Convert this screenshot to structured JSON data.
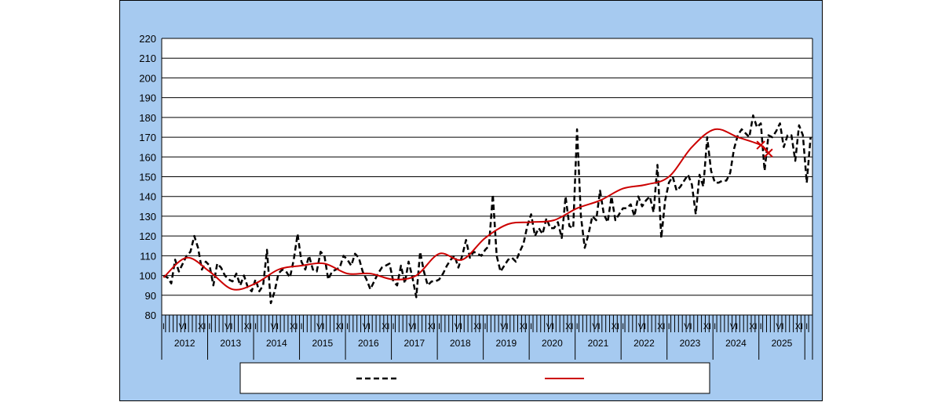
{
  "chart_data": {
    "type": "line",
    "title": "",
    "xlabel": "",
    "ylabel": "",
    "ylim": [
      80,
      220
    ],
    "y_ticks": [
      80,
      90,
      100,
      110,
      120,
      130,
      140,
      150,
      160,
      170,
      180,
      190,
      200,
      210,
      220
    ],
    "grid": true,
    "start": "2012-01",
    "month_tick_labels": [
      "I",
      "VI",
      "XI"
    ],
    "years": [
      "2012",
      "2013",
      "2014",
      "2015",
      "2016",
      "2017",
      "2018",
      "2019",
      "2020",
      "2021",
      "2022",
      "2023",
      "2024",
      "2025"
    ],
    "legend_position": "bottom",
    "series": [
      {
        "name": "",
        "style": "dashed",
        "color": "#000000",
        "values": [
          100,
          99,
          96,
          108,
          102,
          106,
          110,
          112,
          120,
          114,
          103,
          107,
          105,
          95,
          106,
          104,
          100,
          98,
          97,
          101,
          95,
          100,
          94,
          92,
          98,
          92,
          95,
          113,
          86,
          92,
          101,
          103,
          102,
          99,
          108,
          121,
          107,
          103,
          110,
          103,
          102,
          112,
          110,
          98,
          102,
          103,
          104,
          110,
          108,
          105,
          111,
          109,
          102,
          98,
          93,
          97,
          101,
          104,
          105,
          106,
          97,
          95,
          105,
          96,
          107,
          99,
          89,
          112,
          102,
          95,
          97,
          97,
          98,
          101,
          105,
          108,
          110,
          104,
          110,
          118,
          109,
          112,
          111,
          110,
          113,
          115,
          141,
          110,
          102,
          105,
          108,
          109,
          107,
          112,
          116,
          125,
          131,
          120,
          124,
          121,
          129,
          124,
          124,
          127,
          119,
          140,
          125,
          124,
          174,
          130,
          114,
          121,
          130,
          128,
          143,
          131,
          127,
          140,
          128,
          131,
          134,
          134,
          136,
          130,
          140,
          135,
          138,
          140,
          132,
          156,
          119,
          138,
          147,
          150,
          143,
          145,
          148,
          151,
          146,
          131,
          151,
          145,
          170,
          153,
          147,
          147,
          148,
          148,
          152,
          164,
          171,
          174,
          172,
          170,
          181,
          175,
          177,
          153,
          171,
          170,
          173,
          177,
          165,
          171,
          171,
          158,
          176,
          171,
          147,
          170
        ],
        "x_start": "2012-01"
      },
      {
        "name": "",
        "style": "solid",
        "color": "#cc0000",
        "x": [
          "2012-01",
          "2012-07",
          "2013-01",
          "2013-07",
          "2014-01",
          "2014-07",
          "2015-01",
          "2015-07",
          "2016-01",
          "2016-07",
          "2017-01",
          "2017-07",
          "2018-01",
          "2018-07",
          "2019-01",
          "2019-07",
          "2020-01",
          "2020-07",
          "2021-01",
          "2021-07",
          "2022-01",
          "2022-07",
          "2023-01",
          "2023-07",
          "2024-01",
          "2024-07",
          "2025-01",
          "2025-03"
        ],
        "values": [
          99,
          109,
          102,
          93,
          96,
          103,
          105,
          106,
          101,
          101,
          98,
          100,
          111,
          108,
          119,
          126,
          127,
          128,
          134,
          138,
          144,
          146,
          150,
          165,
          174,
          170,
          166,
          162
        ]
      }
    ]
  },
  "legend": {
    "series_1_label": "",
    "series_2_label": ""
  }
}
